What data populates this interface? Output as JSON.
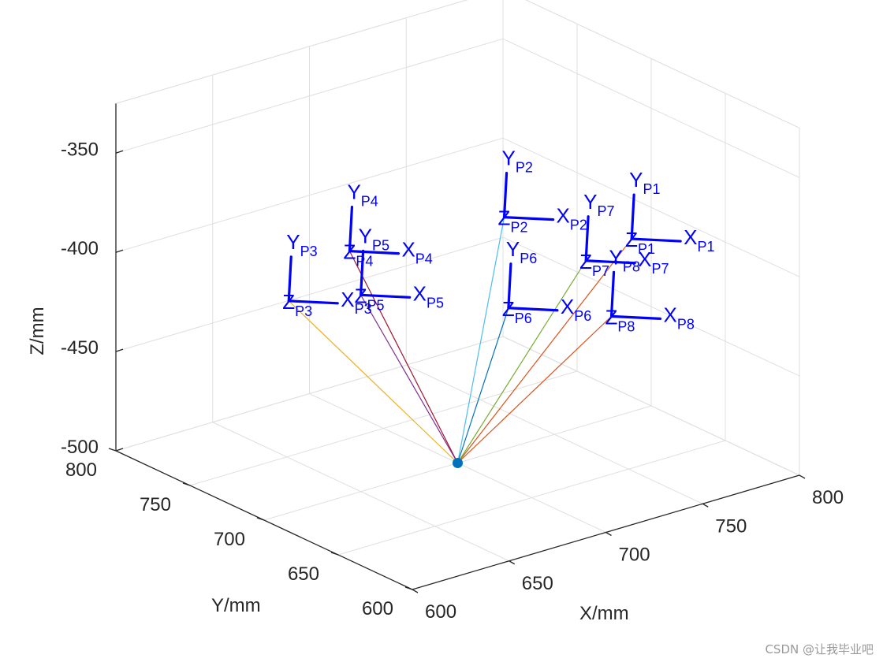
{
  "chart_data": {
    "type": "3d-frames",
    "xlabel": "X/mm",
    "ylabel": "Y/mm",
    "zlabel": "Z/mm",
    "xlim": [
      600,
      800
    ],
    "ylim": [
      600,
      800
    ],
    "zlim": [
      -500,
      -325
    ],
    "xticks": [
      "600",
      "650",
      "700",
      "750",
      "800"
    ],
    "yticks": [
      "600",
      "650",
      "700",
      "750",
      "800"
    ],
    "zticks": [
      "-350",
      "-400",
      "-450",
      "-500"
    ],
    "grid": true,
    "origin": {
      "x": 700,
      "y": 700,
      "z": -500,
      "color": "#0072bd"
    },
    "frames": [
      {
        "name": "P1",
        "x": 747,
        "y": 644,
        "z": -381,
        "ray_color": "#d95319"
      },
      {
        "name": "P2",
        "x": 685,
        "y": 649,
        "z": -354,
        "ray_color": "#4dbeee"
      },
      {
        "name": "P3",
        "x": 638,
        "y": 733,
        "z": -412,
        "ray_color": "#edb120"
      },
      {
        "name": "P4",
        "x": 648,
        "y": 705,
        "z": -380,
        "ray_color": "#a2142f"
      },
      {
        "name": "P5",
        "x": 689,
        "y": 751,
        "z": -430,
        "ray_color": "#7e2f8e"
      },
      {
        "name": "P6",
        "x": 727,
        "y": 701,
        "z": -430,
        "ray_color": "#0072bd"
      },
      {
        "name": "P7",
        "x": 754,
        "y": 684,
        "z": -408,
        "ray_color": "#77ac30"
      },
      {
        "name": "P8",
        "x": 758,
        "y": 672,
        "z": -433,
        "ray_color": "#d95319"
      }
    ],
    "frame_color": "#0000ff"
  },
  "watermark": "CSDN @让我毕业吧"
}
